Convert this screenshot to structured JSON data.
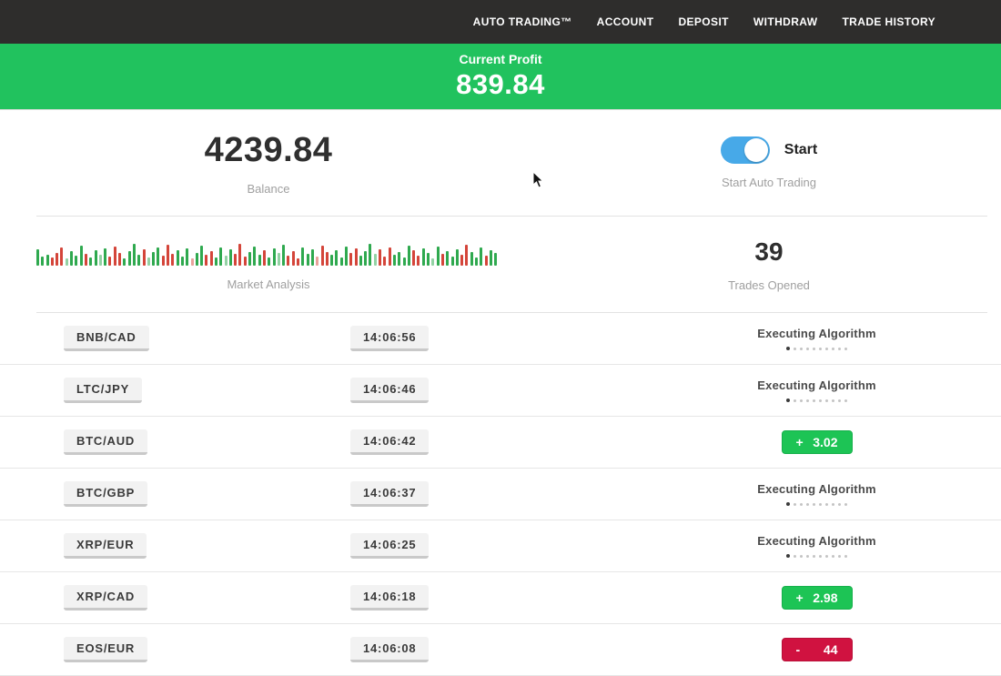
{
  "nav": {
    "items": [
      {
        "label": "AUTO TRADING™"
      },
      {
        "label": "ACCOUNT"
      },
      {
        "label": "DEPOSIT"
      },
      {
        "label": "WITHDRAW"
      },
      {
        "label": "TRADE HISTORY"
      }
    ]
  },
  "banner": {
    "label": "Current Profit",
    "value": "839.84",
    "bg_color": "#21c25e"
  },
  "account": {
    "balance": "4239.84",
    "balance_label": "Balance",
    "toggle_label": "Start",
    "toggle_caption": "Start Auto Trading",
    "toggle_on": true,
    "toggle_color": "#47a9e8"
  },
  "stats": {
    "trades_opened": "39",
    "trades_opened_label": "Trades Opened",
    "market_label": "Market Analysis"
  },
  "market_analysis": {
    "colors": {
      "g": "#2fa94f",
      "r": "#d4453a",
      "G": "#93d2a4",
      "R": "#e8a29b"
    },
    "bars": [
      [
        18,
        "g"
      ],
      [
        10,
        "g"
      ],
      [
        12,
        "g"
      ],
      [
        9,
        "r"
      ],
      [
        14,
        "r"
      ],
      [
        20,
        "r"
      ],
      [
        8,
        "G"
      ],
      [
        16,
        "g"
      ],
      [
        11,
        "g"
      ],
      [
        22,
        "g"
      ],
      [
        13,
        "r"
      ],
      [
        9,
        "g"
      ],
      [
        17,
        "g"
      ],
      [
        12,
        "G"
      ],
      [
        19,
        "g"
      ],
      [
        10,
        "r"
      ],
      [
        21,
        "r"
      ],
      [
        14,
        "r"
      ],
      [
        8,
        "g"
      ],
      [
        16,
        "g"
      ],
      [
        24,
        "g"
      ],
      [
        12,
        "g"
      ],
      [
        18,
        "r"
      ],
      [
        9,
        "G"
      ],
      [
        15,
        "g"
      ],
      [
        20,
        "g"
      ],
      [
        11,
        "r"
      ],
      [
        23,
        "r"
      ],
      [
        13,
        "r"
      ],
      [
        17,
        "g"
      ],
      [
        10,
        "g"
      ],
      [
        19,
        "g"
      ],
      [
        8,
        "R"
      ],
      [
        14,
        "g"
      ],
      [
        22,
        "g"
      ],
      [
        12,
        "r"
      ],
      [
        16,
        "r"
      ],
      [
        9,
        "g"
      ],
      [
        20,
        "g"
      ],
      [
        11,
        "G"
      ],
      [
        18,
        "g"
      ],
      [
        13,
        "r"
      ],
      [
        24,
        "r"
      ],
      [
        10,
        "r"
      ],
      [
        15,
        "g"
      ],
      [
        21,
        "g"
      ],
      [
        12,
        "g"
      ],
      [
        17,
        "r"
      ],
      [
        9,
        "g"
      ],
      [
        19,
        "g"
      ],
      [
        14,
        "G"
      ],
      [
        23,
        "g"
      ],
      [
        11,
        "r"
      ],
      [
        16,
        "r"
      ],
      [
        8,
        "r"
      ],
      [
        20,
        "g"
      ],
      [
        13,
        "g"
      ],
      [
        18,
        "g"
      ],
      [
        10,
        "R"
      ],
      [
        22,
        "r"
      ],
      [
        15,
        "r"
      ],
      [
        12,
        "g"
      ],
      [
        17,
        "g"
      ],
      [
        9,
        "g"
      ],
      [
        21,
        "g"
      ],
      [
        14,
        "r"
      ],
      [
        19,
        "r"
      ],
      [
        11,
        "g"
      ],
      [
        16,
        "g"
      ],
      [
        24,
        "g"
      ],
      [
        13,
        "G"
      ],
      [
        18,
        "r"
      ],
      [
        10,
        "r"
      ],
      [
        20,
        "r"
      ],
      [
        12,
        "g"
      ],
      [
        15,
        "g"
      ],
      [
        9,
        "g"
      ],
      [
        22,
        "g"
      ],
      [
        17,
        "r"
      ],
      [
        11,
        "r"
      ],
      [
        19,
        "g"
      ],
      [
        14,
        "g"
      ],
      [
        8,
        "G"
      ],
      [
        21,
        "g"
      ],
      [
        13,
        "r"
      ],
      [
        16,
        "g"
      ],
      [
        10,
        "g"
      ],
      [
        18,
        "g"
      ],
      [
        12,
        "r"
      ],
      [
        23,
        "r"
      ],
      [
        15,
        "g"
      ],
      [
        9,
        "g"
      ],
      [
        20,
        "g"
      ],
      [
        11,
        "r"
      ],
      [
        17,
        "g"
      ],
      [
        14,
        "g"
      ]
    ]
  },
  "trades": {
    "dots": 10,
    "rows": [
      {
        "pair": "BNB/CAD",
        "time": "14:06:56",
        "status": {
          "type": "executing",
          "label": "Executing Algorithm"
        }
      },
      {
        "pair": "LTC/JPY",
        "time": "14:06:46",
        "status": {
          "type": "executing",
          "label": "Executing Algorithm"
        }
      },
      {
        "pair": "BTC/AUD",
        "time": "14:06:42",
        "status": {
          "type": "profit",
          "sign": "+",
          "value": "3.02"
        }
      },
      {
        "pair": "BTC/GBP",
        "time": "14:06:37",
        "status": {
          "type": "executing",
          "label": "Executing Algorithm"
        }
      },
      {
        "pair": "XRP/EUR",
        "time": "14:06:25",
        "status": {
          "type": "executing",
          "label": "Executing Algorithm"
        }
      },
      {
        "pair": "XRP/CAD",
        "time": "14:06:18",
        "status": {
          "type": "profit",
          "sign": "+",
          "value": "2.98"
        }
      },
      {
        "pair": "EOS/EUR",
        "time": "14:06:08",
        "status": {
          "type": "loss",
          "sign": "-",
          "value": "44"
        }
      }
    ],
    "status_colors": {
      "profit": "#1dc455",
      "loss": "#d01240"
    }
  }
}
